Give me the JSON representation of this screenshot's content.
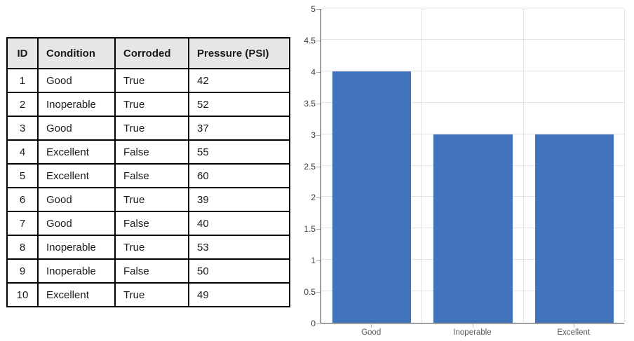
{
  "table": {
    "headers": [
      "ID",
      "Condition",
      "Corroded",
      "Pressure (PSI)"
    ],
    "rows": [
      [
        "1",
        "Good",
        "True",
        "42"
      ],
      [
        "2",
        "Inoperable",
        "True",
        "52"
      ],
      [
        "3",
        "Good",
        "True",
        "37"
      ],
      [
        "4",
        "Excellent",
        "False",
        "55"
      ],
      [
        "5",
        "Excellent",
        "False",
        "60"
      ],
      [
        "6",
        "Good",
        "True",
        "39"
      ],
      [
        "7",
        "Good",
        "False",
        "40"
      ],
      [
        "8",
        "Inoperable",
        "True",
        "53"
      ],
      [
        "9",
        "Inoperable",
        "False",
        "50"
      ],
      [
        "10",
        "Excellent",
        "True",
        "49"
      ]
    ],
    "header_bg": "#e7e6e6",
    "border_color": "#000000"
  },
  "chart_data": {
    "type": "bar",
    "categories": [
      "Good",
      "Inoperable",
      "Excellent"
    ],
    "values": [
      4,
      3,
      3
    ],
    "title": "",
    "xlabel": "",
    "ylabel": "",
    "ylim": [
      0,
      5
    ],
    "ytick_step": 0.5,
    "grid": true,
    "legend": false,
    "bar_color": "#4273bd",
    "gridline_color": "#e2e2e2",
    "axis_color": "#404040",
    "ytick_label_color": "#404040",
    "xtick_label_color": "#595959"
  }
}
